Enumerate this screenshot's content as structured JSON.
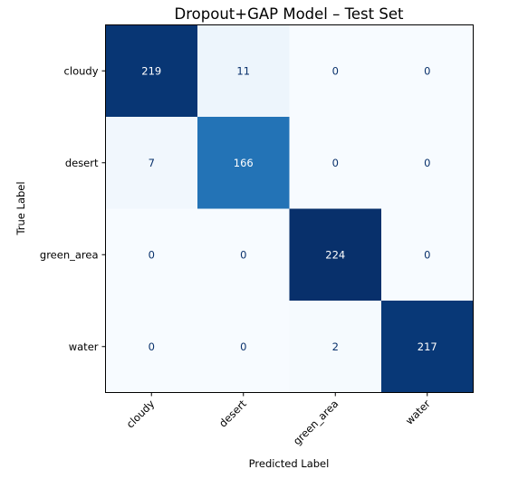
{
  "chart_data": {
    "type": "heatmap",
    "title": "Dropout+GAP Model – Test Set",
    "xlabel": "Predicted Label",
    "ylabel": "True Label",
    "x_categories": [
      "cloudy",
      "desert",
      "green_area",
      "water"
    ],
    "y_categories": [
      "cloudy",
      "desert",
      "green_area",
      "water"
    ],
    "values": [
      [
        219,
        11,
        0,
        0
      ],
      [
        7,
        166,
        0,
        0
      ],
      [
        0,
        0,
        224,
        0
      ],
      [
        0,
        0,
        2,
        217
      ]
    ],
    "colormap": "Blues",
    "colors": {
      "low": "#f7fbff",
      "high": "#08306b",
      "text_dark_cell": "#ffffff",
      "text_light_cell": "#08306b"
    },
    "grid": false,
    "colorbar": false
  }
}
